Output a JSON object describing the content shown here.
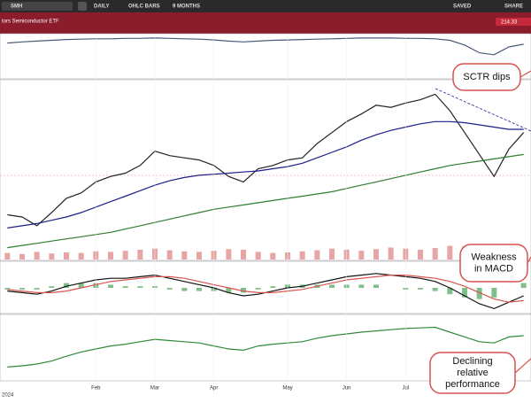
{
  "toolbar": {
    "search": "SMH",
    "period": "DAILY",
    "type": "OHLC BARS",
    "range": "9 MONTHS",
    "saved": "SAVED",
    "share": "SHARE"
  },
  "header": {
    "title": "tors Semiconductor ETF",
    "last": "214.33"
  },
  "x_axis": {
    "categories": [
      null,
      null,
      null,
      null,
      null,
      null,
      "Feb",
      null,
      null,
      null,
      "Mar",
      null,
      null,
      null,
      "Apr",
      null,
      null,
      null,
      null,
      "May",
      null,
      null,
      null,
      "Jun",
      null,
      null,
      null,
      "Jul",
      null,
      null,
      null,
      null,
      null,
      null,
      null,
      null
    ],
    "year_label": "2024"
  },
  "annotations": [
    [
      "SCTR dips"
    ],
    [
      "Weakness",
      "in MACD"
    ],
    [
      "Declining",
      "relative",
      "performance"
    ]
  ],
  "chart_data": [
    {
      "type": "line",
      "ylim": [
        0,
        100
      ],
      "series": [
        {
          "color": "#4a5a78",
          "values": [
            85,
            88,
            90,
            92,
            94,
            95,
            96,
            96,
            97,
            97,
            98,
            97,
            96,
            95,
            93,
            90,
            88,
            90,
            92,
            93,
            94,
            95,
            96,
            97,
            98,
            98,
            98,
            97,
            97,
            96,
            92,
            80,
            60,
            55,
            75,
            82
          ]
        }
      ]
    },
    {
      "type": "line",
      "ylim": [
        130,
        290
      ],
      "series": [
        {
          "color": "#222222",
          "values": [
            170,
            168,
            160,
            172,
            185,
            190,
            200,
            205,
            208,
            215,
            228,
            224,
            222,
            220,
            215,
            205,
            200,
            212,
            215,
            220,
            222,
            235,
            245,
            255,
            262,
            270,
            268,
            272,
            275,
            280,
            265,
            245,
            225,
            205,
            230,
            245
          ]
        },
        {
          "color": "#1b1f8a",
          "values": [
            158,
            160,
            162,
            165,
            168,
            172,
            177,
            182,
            187,
            192,
            197,
            201,
            204,
            206,
            207,
            208,
            209,
            210,
            212,
            214,
            217,
            222,
            227,
            232,
            238,
            243,
            247,
            250,
            253,
            255,
            255,
            254,
            252,
            250,
            248,
            248
          ]
        },
        {
          "color": "#2e7d32",
          "values": [
            140,
            142,
            144,
            146,
            148,
            150,
            152,
            154,
            157,
            160,
            163,
            166,
            169,
            172,
            175,
            177,
            179,
            181,
            183,
            185,
            187,
            189,
            191,
            194,
            197,
            200,
            203,
            206,
            209,
            212,
            215,
            217,
            219,
            221,
            223,
            225
          ]
        }
      ]
    },
    {
      "type": "bar",
      "ylim": [
        0,
        60
      ],
      "color": "#e8a5a5",
      "values": [
        12,
        10,
        14,
        11,
        13,
        12,
        15,
        14,
        16,
        18,
        20,
        17,
        15,
        14,
        16,
        19,
        18,
        14,
        12,
        13,
        15,
        17,
        20,
        18,
        16,
        19,
        22,
        20,
        18,
        21,
        25,
        24,
        28,
        26,
        18,
        15
      ]
    },
    {
      "type": "line",
      "ylim": [
        -15,
        15
      ],
      "series": [
        {
          "color": "#7fc08a",
          "style": "bar",
          "values": [
            -1,
            -1,
            -1,
            1,
            3,
            3,
            3,
            2,
            1,
            1,
            1,
            -1,
            -2,
            -2,
            -2,
            -3,
            -3,
            -1,
            1,
            2,
            2,
            2,
            2,
            2,
            2,
            2,
            0,
            -1,
            -1,
            -2,
            -4,
            -6,
            -7,
            -6,
            0,
            3
          ]
        },
        {
          "color": "#111111",
          "values": [
            -2,
            -3,
            -4,
            -2,
            1,
            3,
            5,
            6,
            6,
            7,
            8,
            6,
            4,
            2,
            0,
            -3,
            -5,
            -4,
            -2,
            0,
            1,
            3,
            5,
            7,
            8,
            9,
            8,
            7,
            6,
            4,
            0,
            -5,
            -10,
            -13,
            -9,
            -5
          ]
        },
        {
          "color": "#d9534f",
          "values": [
            -1,
            -2,
            -3,
            -3,
            -2,
            0,
            2,
            4,
            5,
            6,
            7,
            7,
            6,
            4,
            2,
            0,
            -2,
            -3,
            -3,
            -2,
            -1,
            1,
            3,
            5,
            6,
            7,
            8,
            8,
            7,
            6,
            4,
            1,
            -3,
            -7,
            -9,
            -8
          ]
        }
      ]
    },
    {
      "type": "line",
      "ylim": [
        0,
        100
      ],
      "series": [
        {
          "color": "#2e8b3a",
          "values": [
            20,
            22,
            25,
            30,
            38,
            45,
            50,
            55,
            58,
            62,
            66,
            64,
            62,
            60,
            55,
            50,
            48,
            55,
            58,
            60,
            62,
            68,
            72,
            75,
            78,
            80,
            82,
            84,
            85,
            86,
            78,
            70,
            62,
            60,
            70,
            72
          ]
        }
      ]
    }
  ]
}
